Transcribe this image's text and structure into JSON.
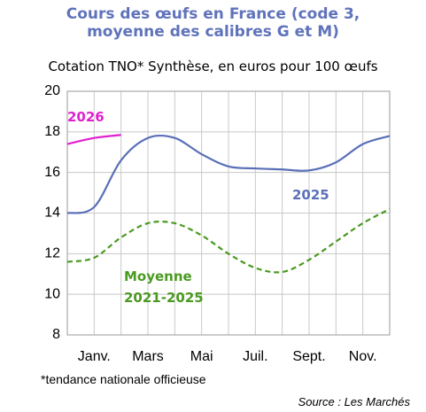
{
  "chart_data": {
    "type": "line",
    "title": "Cours des œufs en France (code 3, moyenne des calibres G et M)",
    "subtitle": "Cotation TNO* Synthèse, en euros pour 100 œufs",
    "categories": [
      null,
      "Janv.",
      null,
      "Mars",
      null,
      "Mai",
      null,
      "Juil.",
      null,
      "Sept.",
      null,
      "Nov.",
      null
    ],
    "series": [
      {
        "name": "2026",
        "color": "#e020d0",
        "values": [
          17.4,
          17.7,
          17.85,
          null,
          null,
          null,
          null,
          null,
          null,
          null,
          null,
          null,
          null
        ]
      },
      {
        "name": "2025",
        "color": "#5a6fb8",
        "values": [
          14.0,
          14.3,
          16.6,
          17.7,
          17.7,
          16.9,
          16.3,
          16.2,
          16.15,
          16.1,
          16.5,
          17.4,
          17.8
        ]
      },
      {
        "name": "Moyenne 2021-2025",
        "color": "#4a9a20",
        "dashed": true,
        "values": [
          11.6,
          11.8,
          12.8,
          13.5,
          13.5,
          12.9,
          12.0,
          11.3,
          11.1,
          11.7,
          12.6,
          13.5,
          14.2
        ]
      }
    ],
    "ylim": [
      8,
      20
    ],
    "yticks": [
      8,
      10,
      12,
      14,
      16,
      18,
      20
    ],
    "grid": true,
    "footnote": "*tendance nationale officieuse",
    "source": "Source : Les Marchés"
  }
}
